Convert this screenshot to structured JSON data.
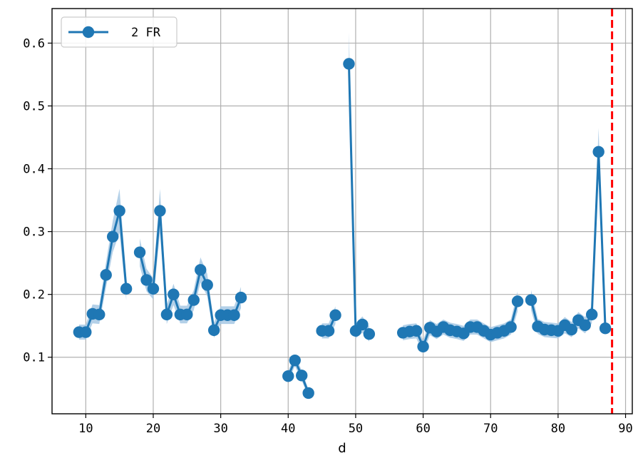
{
  "chart_data": {
    "type": "line",
    "xlabel": "d",
    "ylabel": "",
    "xlim": [
      5,
      91
    ],
    "ylim": [
      0.01,
      0.655
    ],
    "xticks": [
      10,
      20,
      30,
      40,
      50,
      60,
      70,
      80,
      90
    ],
    "yticks": [
      0.1,
      0.2,
      0.3,
      0.4,
      0.5,
      0.6
    ],
    "ytick_labels": [
      "0.1",
      "0.2",
      "0.3",
      "0.4",
      "0.5",
      "0.6"
    ],
    "grid": true,
    "legend_position": "top-left",
    "series": [
      {
        "name": "2 FR",
        "color": "#1f77b4",
        "band_color": "#a6c8e4",
        "segments": [
          {
            "x": [
              9,
              10,
              11,
              12,
              13,
              14,
              15,
              16
            ],
            "y": [
              0.14,
              0.14,
              0.169,
              0.168,
              0.231,
              0.292,
              0.333,
              0.209
            ],
            "err": [
              0.012,
              0.012,
              0.015,
              0.015,
              0.02,
              0.025,
              0.035,
              0.018
            ]
          },
          {
            "x": [
              18,
              19,
              20,
              21,
              22,
              23,
              24,
              25,
              26,
              27,
              28,
              29,
              30,
              31,
              32,
              33
            ],
            "y": [
              0.267,
              0.223,
              0.209,
              0.333,
              0.168,
              0.2,
              0.168,
              0.168,
              0.191,
              0.239,
              0.215,
              0.143,
              0.167,
              0.167,
              0.167,
              0.195
            ],
            "err": [
              0.022,
              0.018,
              0.017,
              0.035,
              0.015,
              0.017,
              0.014,
              0.014,
              0.016,
              0.02,
              0.018,
              0.012,
              0.014,
              0.014,
              0.014,
              0.017
            ]
          },
          {
            "x": [
              40,
              41,
              42,
              43
            ],
            "y": [
              0.07,
              0.095,
              0.071,
              0.043
            ],
            "err": [
              0.008,
              0.009,
              0.008,
              0.006
            ]
          },
          {
            "x": [
              45,
              46,
              47
            ],
            "y": [
              0.142,
              0.142,
              0.167
            ],
            "err": [
              0.012,
              0.012,
              0.014
            ]
          },
          {
            "x": [
              49,
              50,
              51,
              52
            ],
            "y": [
              0.567,
              0.142,
              0.152,
              0.137
            ],
            "err": [
              0.05,
              0.012,
              0.013,
              0.012
            ]
          },
          {
            "x": [
              57,
              58,
              59,
              60,
              61,
              62,
              63,
              64,
              65,
              66,
              67,
              68,
              69,
              70,
              71,
              72,
              73,
              74
            ],
            "y": [
              0.139,
              0.141,
              0.142,
              0.117,
              0.147,
              0.141,
              0.148,
              0.143,
              0.141,
              0.138,
              0.148,
              0.148,
              0.142,
              0.136,
              0.139,
              0.142,
              0.148,
              0.189
            ],
            "err": [
              0.012,
              0.012,
              0.012,
              0.01,
              0.012,
              0.012,
              0.012,
              0.012,
              0.012,
              0.012,
              0.012,
              0.012,
              0.012,
              0.012,
              0.012,
              0.012,
              0.012,
              0.016
            ]
          },
          {
            "x": [
              76,
              77,
              78,
              79,
              80,
              81,
              82,
              83,
              84,
              85,
              86,
              87
            ],
            "y": [
              0.191,
              0.149,
              0.144,
              0.143,
              0.142,
              0.151,
              0.144,
              0.159,
              0.151,
              0.168,
              0.427,
              0.146
            ],
            "err": [
              0.016,
              0.012,
              0.012,
              0.012,
              0.012,
              0.013,
              0.012,
              0.013,
              0.013,
              0.014,
              0.038,
              0.012
            ]
          }
        ]
      }
    ],
    "reference_line": {
      "x": 88,
      "color": "#ff0000",
      "style": "dashed"
    }
  }
}
